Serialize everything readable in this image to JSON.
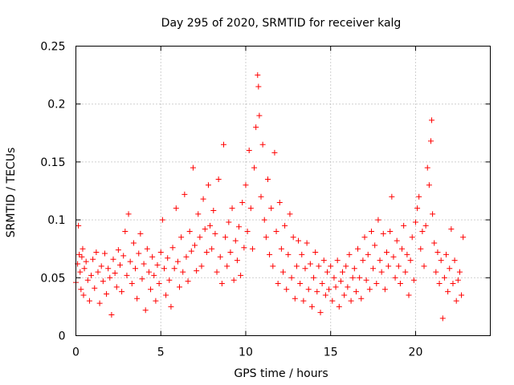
{
  "chart_data": {
    "type": "scatter",
    "title": "Day 295 of 2020, SRMTID for receiver kalg",
    "xlabel": "GPS time / hours",
    "ylabel": "SRMTID / TECUs",
    "xlim": [
      0,
      24.4
    ],
    "ylim": [
      0,
      0.25
    ],
    "x_ticks": [
      0,
      5,
      10,
      15,
      20
    ],
    "x_tick_labels": [
      "0",
      "5",
      "10",
      "15",
      "20"
    ],
    "y_ticks": [
      0,
      0.05,
      0.1,
      0.15,
      0.2,
      0.25
    ],
    "y_tick_labels": [
      "0",
      "0.05",
      "0.1",
      "0.15",
      "0.2",
      "0.25"
    ],
    "grid": true,
    "marker": "+",
    "color": "#ff0000",
    "series": [
      {
        "name": "SRMTID",
        "points": [
          [
            0.0,
            0.046
          ],
          [
            0.1,
            0.062
          ],
          [
            0.15,
            0.095
          ],
          [
            0.2,
            0.07
          ],
          [
            0.25,
            0.055
          ],
          [
            0.3,
            0.04
          ],
          [
            0.35,
            0.068
          ],
          [
            0.4,
            0.075
          ],
          [
            0.45,
            0.035
          ],
          [
            0.5,
            0.058
          ],
          [
            0.6,
            0.064
          ],
          [
            0.7,
            0.048
          ],
          [
            0.8,
            0.03
          ],
          [
            0.9,
            0.052
          ],
          [
            1.0,
            0.066
          ],
          [
            1.1,
            0.041
          ],
          [
            1.2,
            0.072
          ],
          [
            1.3,
            0.055
          ],
          [
            1.4,
            0.028
          ],
          [
            1.5,
            0.06
          ],
          [
            1.6,
            0.047
          ],
          [
            1.7,
            0.071
          ],
          [
            1.8,
            0.036
          ],
          [
            1.9,
            0.058
          ],
          [
            2.0,
            0.05
          ],
          [
            2.1,
            0.018
          ],
          [
            2.2,
            0.066
          ],
          [
            2.3,
            0.054
          ],
          [
            2.4,
            0.042
          ],
          [
            2.5,
            0.074
          ],
          [
            2.6,
            0.061
          ],
          [
            2.7,
            0.038
          ],
          [
            2.8,
            0.069
          ],
          [
            2.9,
            0.09
          ],
          [
            3.0,
            0.052
          ],
          [
            3.1,
            0.105
          ],
          [
            3.2,
            0.064
          ],
          [
            3.3,
            0.045
          ],
          [
            3.4,
            0.08
          ],
          [
            3.5,
            0.058
          ],
          [
            3.6,
            0.032
          ],
          [
            3.7,
            0.071
          ],
          [
            3.8,
            0.088
          ],
          [
            3.9,
            0.049
          ],
          [
            4.0,
            0.062
          ],
          [
            4.1,
            0.022
          ],
          [
            4.2,
            0.075
          ],
          [
            4.3,
            0.055
          ],
          [
            4.4,
            0.04
          ],
          [
            4.5,
            0.068
          ],
          [
            4.6,
            0.052
          ],
          [
            4.7,
            0.03
          ],
          [
            4.8,
            0.061
          ],
          [
            4.9,
            0.045
          ],
          [
            5.0,
            0.072
          ],
          [
            5.1,
            0.1
          ],
          [
            5.2,
            0.058
          ],
          [
            5.3,
            0.035
          ],
          [
            5.4,
            0.067
          ],
          [
            5.5,
            0.048
          ],
          [
            5.6,
            0.025
          ],
          [
            5.7,
            0.076
          ],
          [
            5.8,
            0.058
          ],
          [
            5.9,
            0.11
          ],
          [
            6.0,
            0.064
          ],
          [
            6.1,
            0.042
          ],
          [
            6.2,
            0.085
          ],
          [
            6.3,
            0.055
          ],
          [
            6.4,
            0.122
          ],
          [
            6.5,
            0.068
          ],
          [
            6.6,
            0.047
          ],
          [
            6.7,
            0.09
          ],
          [
            6.8,
            0.073
          ],
          [
            6.9,
            0.145
          ],
          [
            7.0,
            0.078
          ],
          [
            7.1,
            0.056
          ],
          [
            7.2,
            0.105
          ],
          [
            7.3,
            0.085
          ],
          [
            7.4,
            0.06
          ],
          [
            7.5,
            0.118
          ],
          [
            7.6,
            0.092
          ],
          [
            7.7,
            0.072
          ],
          [
            7.8,
            0.13
          ],
          [
            7.9,
            0.095
          ],
          [
            8.0,
            0.075
          ],
          [
            8.1,
            0.108
          ],
          [
            8.2,
            0.088
          ],
          [
            8.3,
            0.055
          ],
          [
            8.4,
            0.135
          ],
          [
            8.5,
            0.068
          ],
          [
            8.6,
            0.045
          ],
          [
            8.7,
            0.165
          ],
          [
            8.8,
            0.085
          ],
          [
            8.9,
            0.06
          ],
          [
            9.0,
            0.098
          ],
          [
            9.1,
            0.072
          ],
          [
            9.2,
            0.11
          ],
          [
            9.3,
            0.048
          ],
          [
            9.4,
            0.082
          ],
          [
            9.5,
            0.065
          ],
          [
            9.6,
            0.094
          ],
          [
            9.7,
            0.052
          ],
          [
            9.8,
            0.115
          ],
          [
            9.9,
            0.076
          ],
          [
            10.0,
            0.13
          ],
          [
            10.1,
            0.09
          ],
          [
            10.2,
            0.16
          ],
          [
            10.3,
            0.11
          ],
          [
            10.4,
            0.075
          ],
          [
            10.5,
            0.145
          ],
          [
            10.6,
            0.18
          ],
          [
            10.7,
            0.225
          ],
          [
            10.75,
            0.215
          ],
          [
            10.8,
            0.19
          ],
          [
            10.9,
            0.12
          ],
          [
            11.0,
            0.165
          ],
          [
            11.1,
            0.1
          ],
          [
            11.2,
            0.085
          ],
          [
            11.3,
            0.135
          ],
          [
            11.4,
            0.07
          ],
          [
            11.5,
            0.11
          ],
          [
            11.6,
            0.06
          ],
          [
            11.7,
            0.158
          ],
          [
            11.8,
            0.09
          ],
          [
            11.9,
            0.045
          ],
          [
            12.0,
            0.115
          ],
          [
            12.1,
            0.075
          ],
          [
            12.2,
            0.055
          ],
          [
            12.3,
            0.095
          ],
          [
            12.4,
            0.04
          ],
          [
            12.5,
            0.07
          ],
          [
            12.6,
            0.105
          ],
          [
            12.7,
            0.05
          ],
          [
            12.8,
            0.085
          ],
          [
            12.9,
            0.032
          ],
          [
            13.0,
            0.06
          ],
          [
            13.1,
            0.082
          ],
          [
            13.2,
            0.045
          ],
          [
            13.3,
            0.07
          ],
          [
            13.4,
            0.03
          ],
          [
            13.5,
            0.058
          ],
          [
            13.6,
            0.08
          ],
          [
            13.7,
            0.04
          ],
          [
            13.8,
            0.062
          ],
          [
            13.9,
            0.025
          ],
          [
            14.0,
            0.05
          ],
          [
            14.1,
            0.072
          ],
          [
            14.2,
            0.038
          ],
          [
            14.3,
            0.06
          ],
          [
            14.4,
            0.02
          ],
          [
            14.5,
            0.045
          ],
          [
            14.6,
            0.065
          ],
          [
            14.7,
            0.035
          ],
          [
            14.8,
            0.055
          ],
          [
            14.9,
            0.04
          ],
          [
            15.0,
            0.06
          ],
          [
            15.1,
            0.03
          ],
          [
            15.2,
            0.05
          ],
          [
            15.3,
            0.042
          ],
          [
            15.4,
            0.065
          ],
          [
            15.5,
            0.025
          ],
          [
            15.6,
            0.047
          ],
          [
            15.7,
            0.055
          ],
          [
            15.8,
            0.035
          ],
          [
            15.9,
            0.06
          ],
          [
            16.0,
            0.042
          ],
          [
            16.1,
            0.07
          ],
          [
            16.2,
            0.03
          ],
          [
            16.3,
            0.05
          ],
          [
            16.4,
            0.058
          ],
          [
            16.5,
            0.038
          ],
          [
            16.6,
            0.075
          ],
          [
            16.7,
            0.05
          ],
          [
            16.8,
            0.032
          ],
          [
            16.9,
            0.065
          ],
          [
            17.0,
            0.085
          ],
          [
            17.1,
            0.048
          ],
          [
            17.2,
            0.07
          ],
          [
            17.3,
            0.04
          ],
          [
            17.4,
            0.09
          ],
          [
            17.5,
            0.058
          ],
          [
            17.6,
            0.078
          ],
          [
            17.7,
            0.045
          ],
          [
            17.8,
            0.1
          ],
          [
            17.9,
            0.065
          ],
          [
            18.0,
            0.055
          ],
          [
            18.1,
            0.088
          ],
          [
            18.2,
            0.04
          ],
          [
            18.3,
            0.072
          ],
          [
            18.4,
            0.06
          ],
          [
            18.5,
            0.09
          ],
          [
            18.6,
            0.12
          ],
          [
            18.7,
            0.068
          ],
          [
            18.8,
            0.05
          ],
          [
            18.9,
            0.082
          ],
          [
            19.0,
            0.06
          ],
          [
            19.1,
            0.045
          ],
          [
            19.2,
            0.075
          ],
          [
            19.3,
            0.095
          ],
          [
            19.4,
            0.055
          ],
          [
            19.5,
            0.07
          ],
          [
            19.6,
            0.035
          ],
          [
            19.7,
            0.065
          ],
          [
            19.8,
            0.085
          ],
          [
            19.9,
            0.048
          ],
          [
            20.0,
            0.098
          ],
          [
            20.1,
            0.11
          ],
          [
            20.2,
            0.12
          ],
          [
            20.3,
            0.075
          ],
          [
            20.4,
            0.09
          ],
          [
            20.5,
            0.06
          ],
          [
            20.6,
            0.095
          ],
          [
            20.7,
            0.145
          ],
          [
            20.8,
            0.13
          ],
          [
            20.9,
            0.168
          ],
          [
            20.95,
            0.186
          ],
          [
            21.0,
            0.105
          ],
          [
            21.1,
            0.08
          ],
          [
            21.2,
            0.055
          ],
          [
            21.3,
            0.072
          ],
          [
            21.4,
            0.045
          ],
          [
            21.5,
            0.065
          ],
          [
            21.6,
            0.015
          ],
          [
            21.7,
            0.05
          ],
          [
            21.8,
            0.07
          ],
          [
            21.9,
            0.038
          ],
          [
            22.0,
            0.058
          ],
          [
            22.1,
            0.092
          ],
          [
            22.2,
            0.045
          ],
          [
            22.3,
            0.065
          ],
          [
            22.4,
            0.03
          ],
          [
            22.5,
            0.048
          ],
          [
            22.6,
            0.055
          ],
          [
            22.7,
            0.035
          ],
          [
            22.8,
            0.085
          ]
        ]
      }
    ]
  }
}
